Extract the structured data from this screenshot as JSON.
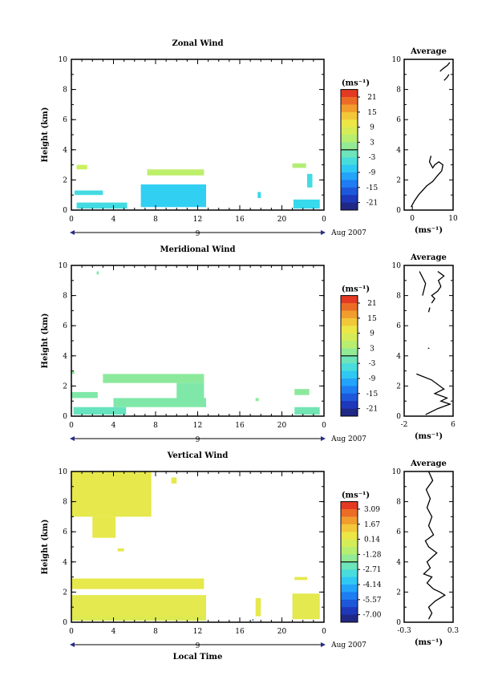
{
  "chart_data": [
    {
      "type": "heatmap",
      "title": "Zonal Wind",
      "xlabel": "",
      "ylabel": "Height (km)",
      "xlim": [
        0,
        24
      ],
      "ylim": [
        0,
        10
      ],
      "x_ticks": [
        "0",
        "4",
        "8",
        "12",
        "16",
        "20",
        "0"
      ],
      "y_ticks": [
        "0",
        "2",
        "4",
        "6",
        "8",
        "10"
      ],
      "date_axis": {
        "label": "9",
        "caption": "Aug 2007"
      },
      "colorbar": {
        "unit": "(ms⁻¹)",
        "range": [
          -24,
          24
        ],
        "ticks": [
          "21",
          "15",
          "9",
          "3",
          "-3",
          "-9",
          "-15",
          "-21"
        ]
      },
      "regions": [
        {
          "x": [
            0.5,
            1.5
          ],
          "y": [
            2.7,
            3.0
          ],
          "value": 6
        },
        {
          "x": [
            7.2,
            12.6
          ],
          "y": [
            2.3,
            2.7
          ],
          "value": 5
        },
        {
          "x": [
            21.0,
            22.3
          ],
          "y": [
            2.8,
            3.1
          ],
          "value": 4
        },
        {
          "x": [
            0.3,
            3.0
          ],
          "y": [
            1.0,
            1.3
          ],
          "value": -5
        },
        {
          "x": [
            6.6,
            12.8
          ],
          "y": [
            0.2,
            1.7
          ],
          "value": -7
        },
        {
          "x": [
            0.5,
            5.3
          ],
          "y": [
            0.1,
            0.5
          ],
          "value": -5
        },
        {
          "x": [
            17.7,
            18.0
          ],
          "y": [
            0.8,
            1.2
          ],
          "value": -6
        },
        {
          "x": [
            21.1,
            23.6
          ],
          "y": [
            0.1,
            0.7
          ],
          "value": -6
        },
        {
          "x": [
            22.4,
            22.9
          ],
          "y": [
            1.5,
            2.4
          ],
          "value": -5
        }
      ],
      "average": {
        "title": "Average",
        "xlabel": "(ms⁻¹)",
        "xlim": [
          -2,
          10
        ],
        "x_ticks": [
          "0",
          "10"
        ],
        "ylim": [
          0,
          10
        ],
        "y_ticks": [
          "0",
          "2",
          "4",
          "6",
          "8",
          "10"
        ],
        "segments": [
          [
            [
              -0.3,
              0.2
            ],
            [
              0.5,
              0.6
            ],
            [
              1.5,
              1.0
            ],
            [
              3.5,
              1.6
            ],
            [
              5.0,
              1.9
            ],
            [
              6.2,
              2.3
            ],
            [
              7.2,
              2.6
            ],
            [
              7.5,
              3.0
            ],
            [
              6.5,
              3.2
            ],
            [
              5.5,
              3.0
            ],
            [
              5.0,
              2.8
            ],
            [
              4.2,
              3.2
            ],
            [
              4.6,
              3.6
            ]
          ],
          [
            [
              7.8,
              8.6
            ],
            [
              8.5,
              8.8
            ],
            [
              9.0,
              9.0
            ]
          ],
          [
            [
              6.8,
              9.2
            ],
            [
              7.6,
              9.4
            ],
            [
              8.6,
              9.6
            ],
            [
              9.2,
              9.8
            ]
          ]
        ]
      }
    },
    {
      "type": "heatmap",
      "title": "Meridional Wind",
      "xlabel": "",
      "ylabel": "Height (km)",
      "xlim": [
        0,
        24
      ],
      "ylim": [
        0,
        10
      ],
      "x_ticks": [
        "0",
        "4",
        "8",
        "12",
        "16",
        "20",
        "0"
      ],
      "y_ticks": [
        "0",
        "2",
        "4",
        "6",
        "8",
        "10"
      ],
      "date_axis": {
        "label": "9",
        "caption": "Aug 2007"
      },
      "colorbar": {
        "unit": "(ms⁻¹)",
        "range": [
          -24,
          24
        ],
        "ticks": [
          "21",
          "15",
          "9",
          "3",
          "-3",
          "-9",
          "-15",
          "-21"
        ]
      },
      "regions": [
        {
          "x": [
            2.4,
            2.6
          ],
          "y": [
            9.4,
            9.6
          ],
          "value": 0
        },
        {
          "x": [
            0.0,
            0.3
          ],
          "y": [
            2.8,
            3.0
          ],
          "value": 1
        },
        {
          "x": [
            3.0,
            12.6
          ],
          "y": [
            2.2,
            2.8
          ],
          "value": 1
        },
        {
          "x": [
            10.0,
            12.6
          ],
          "y": [
            1.0,
            2.2
          ],
          "value": 0
        },
        {
          "x": [
            0.0,
            2.5
          ],
          "y": [
            1.2,
            1.6
          ],
          "value": 0
        },
        {
          "x": [
            4.0,
            12.8
          ],
          "y": [
            0.6,
            1.2
          ],
          "value": 0
        },
        {
          "x": [
            0.2,
            5.2
          ],
          "y": [
            0.1,
            0.6
          ],
          "value": -2
        },
        {
          "x": [
            17.5,
            17.8
          ],
          "y": [
            1.0,
            1.2
          ],
          "value": 1
        },
        {
          "x": [
            21.2,
            22.6
          ],
          "y": [
            1.4,
            1.8
          ],
          "value": 1
        },
        {
          "x": [
            21.2,
            23.6
          ],
          "y": [
            0.1,
            0.6
          ],
          "value": -1
        }
      ],
      "average": {
        "title": "Average",
        "xlabel": "(ms⁻¹)",
        "xlim": [
          -2,
          6
        ],
        "x_ticks": [
          "-2",
          "6"
        ],
        "ylim": [
          0,
          10
        ],
        "y_ticks": [
          "0",
          "2",
          "4",
          "6",
          "8",
          "10"
        ],
        "segments": [
          [
            [
              0.0,
              2.8
            ],
            [
              2.5,
              2.4
            ],
            [
              4.5,
              1.8
            ],
            [
              3.0,
              1.5
            ],
            [
              5.0,
              1.2
            ],
            [
              4.0,
              1.0
            ],
            [
              5.5,
              0.8
            ],
            [
              3.5,
              0.5
            ],
            [
              1.5,
              0.1
            ]
          ],
          [
            [
              1.9,
              4.5
            ],
            [
              2.1,
              4.5
            ]
          ],
          [
            [
              2.0,
              6.9
            ],
            [
              2.2,
              7.2
            ]
          ],
          [
            [
              2.5,
              7.5
            ],
            [
              3.0,
              7.8
            ],
            [
              2.5,
              8.0
            ],
            [
              3.5,
              8.3
            ],
            [
              4.0,
              8.6
            ],
            [
              3.6,
              9.0
            ],
            [
              4.5,
              9.3
            ],
            [
              3.5,
              9.6
            ]
          ],
          [
            [
              1.0,
              8.0
            ],
            [
              1.5,
              8.8
            ],
            [
              0.5,
              9.6
            ]
          ]
        ]
      }
    },
    {
      "type": "heatmap",
      "title": "Vertical Wind",
      "xlabel": "Local Time",
      "ylabel": "Height (km)",
      "xlim": [
        0,
        24
      ],
      "ylim": [
        0,
        10
      ],
      "x_ticks": [
        "0",
        "4",
        "8",
        "12",
        "16",
        "20",
        "0"
      ],
      "y_ticks": [
        "0",
        "2",
        "4",
        "6",
        "8",
        "10"
      ],
      "date_axis": {
        "label": "9",
        "caption": "Aug 2007"
      },
      "colorbar": {
        "unit": "(ms⁻¹)",
        "range": [
          -8.5,
          4.5
        ],
        "ticks": [
          "3.09",
          "1.67",
          "0.14",
          "-1.28",
          "-2.71",
          "-4.14",
          "-5.57",
          "-7.00"
        ]
      },
      "regions": [
        {
          "x": [
            0.0,
            7.6
          ],
          "y": [
            7.0,
            10.0
          ],
          "value": 0.6
        },
        {
          "x": [
            2.0,
            4.2
          ],
          "y": [
            5.6,
            7.0
          ],
          "value": 0.6
        },
        {
          "x": [
            4.4,
            5.0
          ],
          "y": [
            4.7,
            4.9
          ],
          "value": 0.6
        },
        {
          "x": [
            9.5,
            10.0
          ],
          "y": [
            9.2,
            9.6
          ],
          "value": 0.6
        },
        {
          "x": [
            0.0,
            12.6
          ],
          "y": [
            2.2,
            2.9
          ],
          "value": 0.6
        },
        {
          "x": [
            0.0,
            12.8
          ],
          "y": [
            0.2,
            1.8
          ],
          "value": 0.5
        },
        {
          "x": [
            0.0,
            12.8
          ],
          "y": [
            0.1,
            0.4
          ],
          "value": 0.3
        },
        {
          "x": [
            17.5,
            18.0
          ],
          "y": [
            0.4,
            1.6
          ],
          "value": 0.6
        },
        {
          "x": [
            21.2,
            22.4
          ],
          "y": [
            2.8,
            3.0
          ],
          "value": 0.6
        },
        {
          "x": [
            21.0,
            23.6
          ],
          "y": [
            0.2,
            1.9
          ],
          "value": 0.5
        },
        {
          "x": [
            17.2,
            17.3
          ],
          "y": [
            0.1,
            0.2
          ],
          "value": -7.0
        }
      ],
      "average": {
        "title": "Average",
        "xlabel": "(ms⁻¹)",
        "xlim": [
          -0.3,
          0.3
        ],
        "x_ticks": [
          "-0.3",
          "0.3"
        ],
        "ylim": [
          0,
          10
        ],
        "y_ticks": [
          "0",
          "2",
          "4",
          "6",
          "8",
          "10"
        ],
        "segments": [
          [
            [
              0.0,
              0.2
            ],
            [
              0.04,
              0.6
            ],
            [
              0.0,
              1.0
            ],
            [
              0.08,
              1.4
            ],
            [
              0.2,
              1.8
            ],
            [
              0.14,
              2.0
            ],
            [
              0.06,
              2.2
            ],
            [
              -0.02,
              2.6
            ],
            [
              0.04,
              3.0
            ],
            [
              -0.06,
              3.2
            ],
            [
              0.02,
              3.6
            ],
            [
              -0.02,
              4.0
            ],
            [
              0.1,
              4.6
            ],
            [
              0.0,
              5.0
            ],
            [
              -0.04,
              5.4
            ],
            [
              0.06,
              5.8
            ],
            [
              0.0,
              6.4
            ],
            [
              0.04,
              7.0
            ],
            [
              -0.02,
              7.6
            ],
            [
              0.02,
              8.2
            ],
            [
              -0.03,
              8.8
            ],
            [
              0.05,
              9.4
            ],
            [
              0.0,
              10.0
            ]
          ]
        ]
      }
    }
  ]
}
